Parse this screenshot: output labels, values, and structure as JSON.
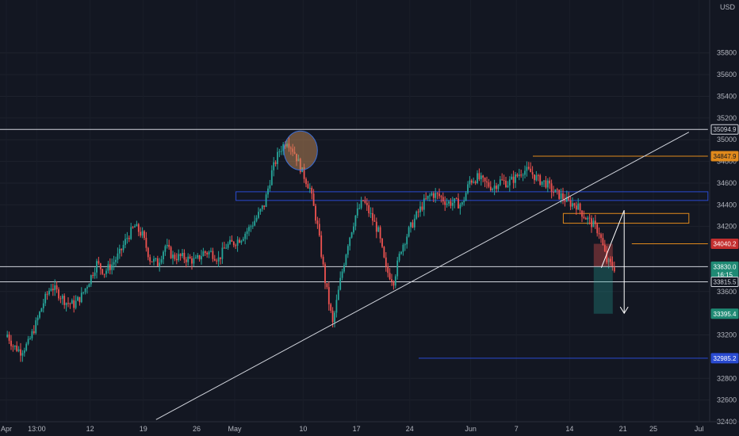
{
  "chart_data": {
    "type": "candlestick",
    "currency_label": "USD",
    "y_axis": {
      "range": [
        32400,
        36200
      ],
      "ticks": [
        32400,
        32600,
        32800,
        33200,
        33600,
        34200,
        34400,
        34600,
        34800,
        35000,
        35200,
        35400,
        35600,
        35800
      ]
    },
    "x_axis": {
      "ticks": [
        {
          "label": "Apr",
          "x": 0
        },
        {
          "label": "13:00",
          "x": 4
        },
        {
          "label": "12",
          "x": 11
        },
        {
          "label": "19",
          "x": 18
        },
        {
          "label": "26",
          "x": 25
        },
        {
          "label": "May",
          "x": 30
        },
        {
          "label": "10",
          "x": 39
        },
        {
          "label": "17",
          "x": 46
        },
        {
          "label": "24",
          "x": 53
        },
        {
          "label": "Jun",
          "x": 61
        },
        {
          "label": "7",
          "x": 67
        },
        {
          "label": "14",
          "x": 74
        },
        {
          "label": "21",
          "x": 81
        },
        {
          "label": "25",
          "x": 85
        },
        {
          "label": "Jul",
          "x": 91
        }
      ]
    },
    "series_close": [
      33240,
      33100,
      33050,
      33120,
      33300,
      33500,
      33650,
      33580,
      33500,
      33480,
      33560,
      33700,
      33860,
      33780,
      33850,
      33950,
      34100,
      34200,
      34120,
      33900,
      33860,
      34020,
      33920,
      33920,
      33900,
      33880,
      33960,
      33960,
      33900,
      34020,
      34050,
      34100,
      34180,
      34280,
      34400,
      34700,
      34900,
      35000,
      34880,
      34700,
      34550,
      34200,
      33700,
      33300,
      33700,
      34050,
      34300,
      34440,
      34300,
      34150,
      33800,
      33700,
      34000,
      34160,
      34300,
      34420,
      34500,
      34480,
      34420,
      34420,
      34400,
      34620,
      34650,
      34600,
      34560,
      34620,
      34600,
      34650,
      34720,
      34700,
      34630,
      34600,
      34520,
      34480,
      34420,
      34400,
      34300,
      34230,
      34150,
      33880,
      33820
    ],
    "price_tags": [
      {
        "label": "35094.9",
        "value": 35094.9,
        "bg": "#131722",
        "fg": "#d1d4dc",
        "border": "#d1d4dc"
      },
      {
        "label": "34847.9",
        "value": 34847.9,
        "bg": "#e08a1c",
        "fg": "#131722",
        "border": "#e08a1c"
      },
      {
        "label": "34040.2",
        "value": 34040.2,
        "bg": "#c42f2f",
        "fg": "#ffffff",
        "border": "#c42f2f"
      },
      {
        "label": "33830.0",
        "value": 33830.0,
        "bg": "#1f8a74",
        "fg": "#ffffff",
        "border": "#1f8a74"
      },
      {
        "label": "16:15",
        "value": 33755,
        "bg": "#1f8a74",
        "fg": "#ffffff",
        "border": "#1f8a74"
      },
      {
        "label": "33815.5",
        "value": 33690,
        "bg": "#131722",
        "fg": "#d1d4dc",
        "border": "#d1d4dc"
      },
      {
        "label": "33395.4",
        "value": 33395.4,
        "bg": "#1f8a74",
        "fg": "#ffffff",
        "border": "#1f8a74"
      },
      {
        "label": "32985.2",
        "value": 32985.2,
        "bg": "#2a4bd1",
        "fg": "#ffffff",
        "border": "#2a4bd1"
      }
    ],
    "annotations": {
      "horizontal_lines": [
        {
          "value": 35094.9,
          "x_from": 0,
          "x_to": 93,
          "color": "#d1d4dc"
        },
        {
          "value": 33830,
          "x_from": 0,
          "x_to": 93,
          "color": "#d1d4dc"
        },
        {
          "value": 33690,
          "x_from": 0,
          "x_to": 93,
          "color": "#d1d4dc"
        },
        {
          "value": 34847.9,
          "x_from": 70,
          "x_to": 93,
          "color": "#e08a1c"
        },
        {
          "value": 34040.2,
          "x_from": 83,
          "x_to": 93,
          "color": "#e08a1c"
        },
        {
          "value": 32985.2,
          "x_from": 55,
          "x_to": 93,
          "color": "#2a4bd1"
        }
      ],
      "zones": [
        {
          "v_top": 34520,
          "v_bottom": 34440,
          "x_from": 31,
          "x_to": 93,
          "color": "#2a4bd1"
        },
        {
          "v_top": 34320,
          "v_bottom": 34230,
          "x_from": 74,
          "x_to": 90.5,
          "color": "#e08a1c"
        }
      ],
      "trendline": {
        "x1": 20.5,
        "v1": 32420,
        "x2": 90.5,
        "v2": 35070,
        "color": "#d1d4dc"
      },
      "ellipse": {
        "x": 39.5,
        "v": 34900,
        "rx": 2.2,
        "ry_v": 180
      },
      "path_arrow": {
        "points": [
          [
            79,
            33820
          ],
          [
            82,
            34350
          ],
          [
            82,
            33400
          ]
        ]
      },
      "position": {
        "x_from": 78,
        "x_to": 80.5,
        "v_stop": 34040.2,
        "v_entry": 33830,
        "v_target": 33395.4
      }
    }
  }
}
